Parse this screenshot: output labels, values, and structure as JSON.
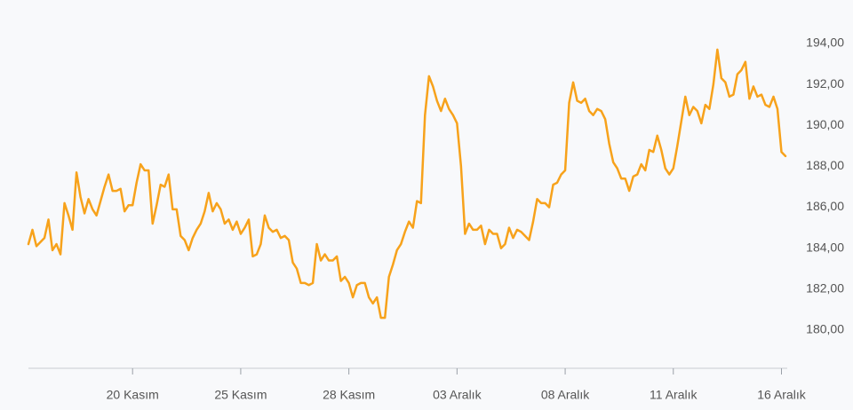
{
  "chart_data": {
    "type": "line",
    "color": "#f7a21b",
    "categories": [
      null,
      null,
      null,
      null,
      null,
      null,
      null,
      null,
      null,
      null,
      null,
      null,
      null,
      null,
      null,
      null,
      null,
      null,
      null,
      null,
      null,
      null,
      null,
      null,
      null,
      null,
      "20 Kasım",
      null,
      null,
      null,
      null,
      null,
      null,
      null,
      null,
      null,
      null,
      null,
      null,
      null,
      null,
      null,
      null,
      null,
      null,
      null,
      null,
      null,
      null,
      null,
      null,
      null,
      null,
      "25 Kasım",
      null,
      null,
      null,
      null,
      null,
      null,
      null,
      null,
      null,
      null,
      null,
      null,
      null,
      null,
      null,
      null,
      null,
      null,
      null,
      null,
      null,
      null,
      null,
      null,
      null,
      null,
      "28 Kasım",
      null,
      null,
      null,
      null,
      null,
      null,
      null,
      null,
      null,
      null,
      null,
      null,
      null,
      null,
      null,
      null,
      null,
      null,
      null,
      null,
      null,
      null,
      null,
      null,
      null,
      null,
      "03 Aralık",
      null,
      null,
      null,
      null,
      null,
      null,
      null,
      null,
      null,
      null,
      null,
      null,
      null,
      null,
      null,
      null,
      null,
      null,
      null,
      null,
      null,
      null,
      null,
      null,
      null,
      null,
      "08 Aralık",
      null,
      null,
      null,
      null,
      null,
      null,
      null,
      null,
      null,
      null,
      null,
      null,
      null,
      null,
      null,
      null,
      null,
      null,
      null,
      null,
      null,
      null,
      null,
      null,
      null,
      null,
      "11 Aralık",
      null,
      null,
      null,
      null,
      null,
      null,
      null,
      null,
      null,
      null,
      null,
      null,
      null,
      null,
      null,
      null,
      null,
      null,
      null,
      null,
      null,
      null,
      null,
      null,
      null,
      null,
      "16 Aralık",
      null
    ],
    "values": [
      184.2,
      184.9,
      184.1,
      184.3,
      184.5,
      185.4,
      183.9,
      184.2,
      183.7,
      186.2,
      185.6,
      184.9,
      187.7,
      186.5,
      185.7,
      186.4,
      185.9,
      185.6,
      186.3,
      187.0,
      187.6,
      186.8,
      186.8,
      186.9,
      185.8,
      186.1,
      186.1,
      187.2,
      188.1,
      187.8,
      187.8,
      185.2,
      186.1,
      187.1,
      187.0,
      187.6,
      185.9,
      185.9,
      184.6,
      184.4,
      183.9,
      184.5,
      184.9,
      185.2,
      185.8,
      186.7,
      185.8,
      186.2,
      185.9,
      185.2,
      185.4,
      184.9,
      185.3,
      184.7,
      185.0,
      185.4,
      183.6,
      183.7,
      184.2,
      185.6,
      185.0,
      184.8,
      184.9,
      184.5,
      184.6,
      184.4,
      183.3,
      183.0,
      182.3,
      182.3,
      182.2,
      182.3,
      184.2,
      183.4,
      183.7,
      183.4,
      183.4,
      183.6,
      182.4,
      182.6,
      182.3,
      181.6,
      182.2,
      182.3,
      182.3,
      181.6,
      181.3,
      181.6,
      180.6,
      180.6,
      182.6,
      183.2,
      183.9,
      184.2,
      184.8,
      185.3,
      185.0,
      186.3,
      186.2,
      190.5,
      192.4,
      191.9,
      191.2,
      190.7,
      191.3,
      190.8,
      190.5,
      190.1,
      188.0,
      184.7,
      185.2,
      184.9,
      184.9,
      185.1,
      184.2,
      184.9,
      184.7,
      184.7,
      184.0,
      184.2,
      185.0,
      184.5,
      184.9,
      184.8,
      184.6,
      184.4,
      185.3,
      186.4,
      186.2,
      186.2,
      186.0,
      187.1,
      187.2,
      187.6,
      187.8,
      191.1,
      192.1,
      191.2,
      191.1,
      191.3,
      190.7,
      190.5,
      190.8,
      190.7,
      190.3,
      189.1,
      188.2,
      187.9,
      187.4,
      187.4,
      186.8,
      187.5,
      187.6,
      188.1,
      187.8,
      188.8,
      188.7,
      189.5,
      188.8,
      187.9,
      187.6,
      187.9,
      189.0,
      190.2,
      191.4,
      190.5,
      190.9,
      190.7,
      190.1,
      191.0,
      190.8,
      192.0,
      193.7,
      192.3,
      192.1,
      191.4,
      191.5,
      192.5,
      192.7,
      193.1,
      191.3,
      191.9,
      191.4,
      191.5,
      191.0,
      190.9,
      191.4,
      190.8,
      188.7,
      188.5
    ],
    "ylim": [
      178.1,
      194.8
    ],
    "yticks": [
      {
        "value": 180,
        "label": "180,00"
      },
      {
        "value": 182,
        "label": "182,00"
      },
      {
        "value": 184,
        "label": "184,00"
      },
      {
        "value": 186,
        "label": "186,00"
      },
      {
        "value": 188,
        "label": "188,00"
      },
      {
        "value": 190,
        "label": "190,00"
      },
      {
        "value": 192,
        "label": "192,00"
      },
      {
        "value": 194,
        "label": "194,00"
      }
    ]
  }
}
